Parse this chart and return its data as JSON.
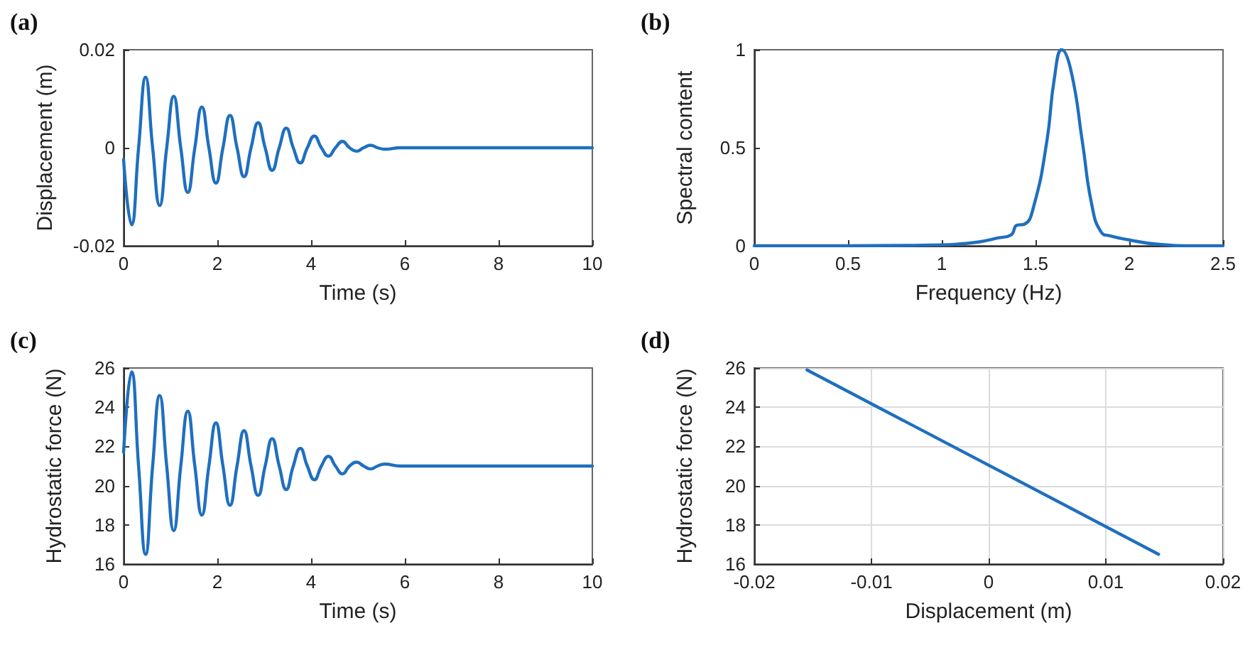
{
  "chart_data": [
    {
      "type": "line",
      "title": "(a)",
      "xlabel": "Time (s)",
      "ylabel": "Displacement (m)",
      "xlim": [
        0,
        10
      ],
      "xticks": [
        0,
        2,
        4,
        6,
        8,
        10
      ],
      "ylim": [
        -0.02,
        0.02
      ],
      "yticks": [
        -0.02,
        0,
        0.02
      ],
      "grid": false,
      "series": [
        {
          "color": "#1f6fbf",
          "x": [
            0,
            0.17,
            0.32,
            0.47,
            0.62,
            0.77,
            0.92,
            1.07,
            1.22,
            1.37,
            1.52,
            1.67,
            1.82,
            1.97,
            2.12,
            2.27,
            2.42,
            2.57,
            2.72,
            2.87,
            3.02,
            3.17,
            3.32,
            3.47,
            3.62,
            3.77,
            3.92,
            4.07,
            4.22,
            4.37,
            4.52,
            4.67,
            4.82,
            4.97,
            5.12,
            5.27,
            5.42,
            5.57,
            5.9,
            6.5,
            10
          ],
          "values": [
            -0.0024,
            -0.0157,
            0,
            0.0144,
            0,
            -0.0118,
            0,
            0.0105,
            0,
            -0.0091,
            0,
            0.0083,
            0,
            -0.0072,
            0,
            0.0066,
            0,
            -0.0059,
            0,
            0.0051,
            0,
            -0.0046,
            0,
            0.004,
            0,
            -0.0031,
            0,
            0.0024,
            0,
            -0.0017,
            0,
            0.0013,
            0,
            -0.0007,
            0,
            0.0005,
            0,
            -0.0003,
            0,
            0,
            0
          ]
        }
      ]
    },
    {
      "type": "line",
      "title": "(b)",
      "xlabel": "Frequency (Hz)",
      "ylabel": "Spectral content",
      "xlim": [
        0,
        2.5
      ],
      "xticks": [
        0,
        0.5,
        1,
        1.5,
        2,
        2.5
      ],
      "ylim": [
        0,
        1
      ],
      "yticks": [
        0,
        0.5,
        1
      ],
      "grid": false,
      "series": [
        {
          "color": "#1f6fbf",
          "x": [
            0,
            0.5,
            1,
            1.1,
            1.2,
            1.3,
            1.37,
            1.4,
            1.44,
            1.49,
            1.56,
            1.6,
            1.64,
            1.69,
            1.75,
            1.8,
            1.85,
            1.9,
            2,
            2.15,
            2.35,
            2.5
          ],
          "values": [
            0,
            0,
            0.005,
            0.01,
            0.02,
            0.04,
            0.056,
            0.105,
            0.11,
            0.2,
            0.53,
            0.85,
            1,
            0.89,
            0.53,
            0.21,
            0.07,
            0.05,
            0.03,
            0.008,
            0,
            0
          ]
        }
      ]
    },
    {
      "type": "line",
      "title": "(c)",
      "xlabel": "Time (s)",
      "ylabel": "Hydrostatic force (N)",
      "xlim": [
        0,
        10
      ],
      "xticks": [
        0,
        2,
        4,
        6,
        8,
        10
      ],
      "ylim": [
        16,
        26
      ],
      "yticks": [
        16,
        18,
        20,
        22,
        24,
        26
      ],
      "grid": false,
      "series": [
        {
          "color": "#1f6fbf",
          "x": [
            0,
            0.17,
            0.32,
            0.47,
            0.62,
            0.77,
            0.92,
            1.07,
            1.22,
            1.37,
            1.52,
            1.67,
            1.82,
            1.97,
            2.12,
            2.27,
            2.42,
            2.57,
            2.72,
            2.87,
            3.02,
            3.17,
            3.32,
            3.47,
            3.62,
            3.77,
            3.92,
            4.07,
            4.22,
            4.37,
            4.52,
            4.67,
            4.82,
            4.97,
            5.12,
            5.27,
            5.42,
            5.57,
            5.9,
            6.5,
            10
          ],
          "values": [
            21.7,
            25.8,
            21,
            16.5,
            21,
            24.6,
            21,
            17.7,
            21,
            23.8,
            21,
            18.5,
            21,
            23.2,
            21,
            19,
            21,
            22.8,
            21,
            19.5,
            21,
            22.4,
            21,
            19.8,
            21,
            21.9,
            21,
            20.3,
            21,
            21.5,
            21,
            20.6,
            21,
            21.2,
            21,
            20.85,
            21,
            21.1,
            21,
            21,
            21
          ]
        }
      ]
    },
    {
      "type": "line",
      "title": "(d)",
      "xlabel": "Displacement (m)",
      "ylabel": "Hydrostatic force (N)",
      "xlim": [
        -0.02,
        0.02
      ],
      "xticks": [
        -0.02,
        -0.01,
        0,
        0.01,
        0.02
      ],
      "ylim": [
        16,
        26
      ],
      "yticks": [
        16,
        18,
        20,
        22,
        24,
        26
      ],
      "grid": true,
      "series": [
        {
          "color": "#1f6fbf",
          "x": [
            -0.0155,
            0.0145
          ],
          "values": [
            25.9,
            16.5
          ]
        }
      ]
    }
  ]
}
